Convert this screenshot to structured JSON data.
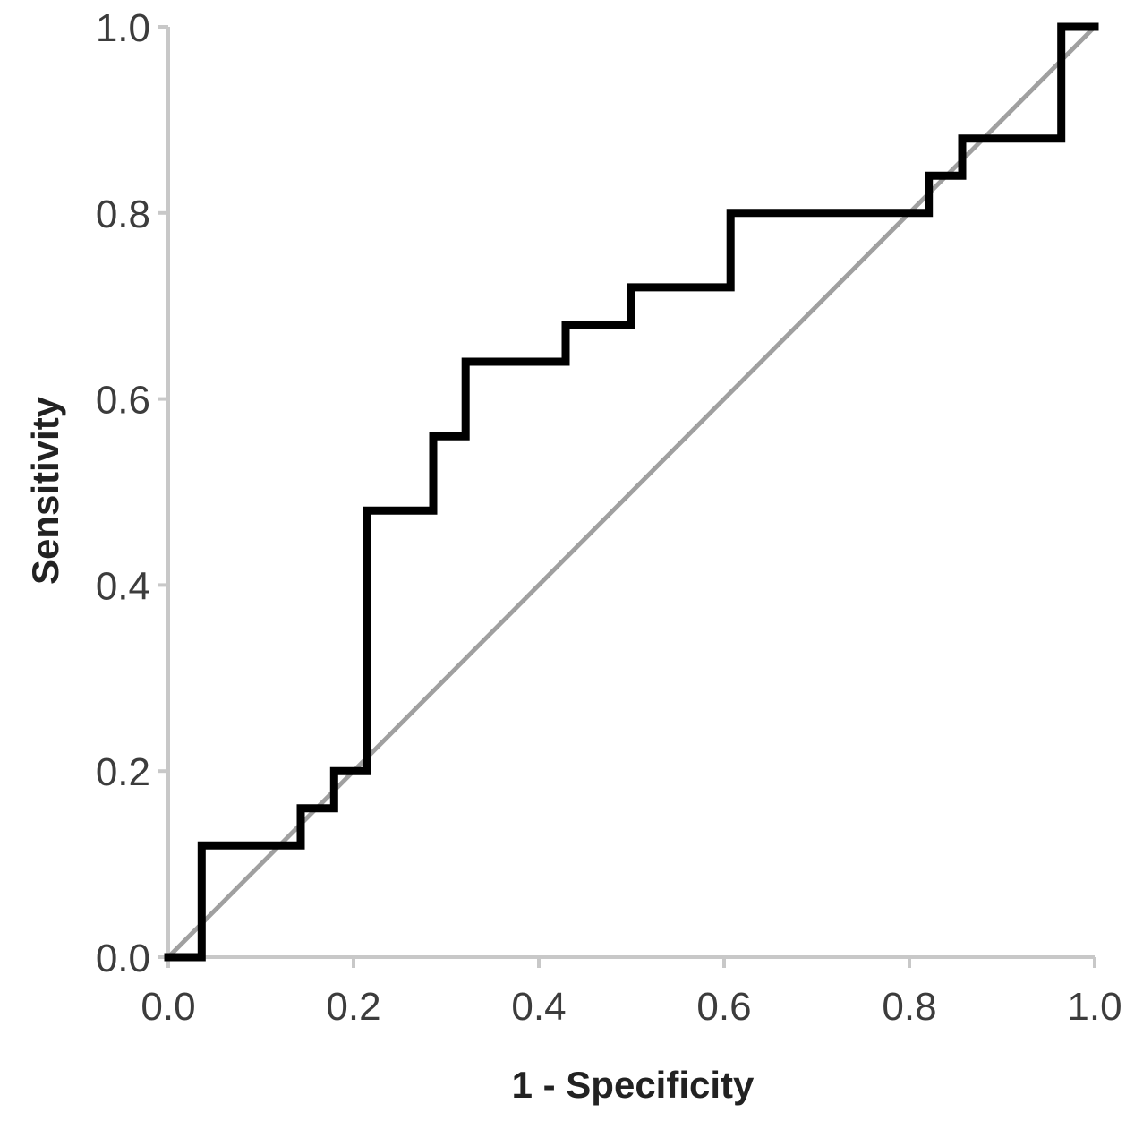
{
  "chart_data": {
    "type": "line",
    "title": "",
    "xlabel": "1 - Specificity",
    "ylabel": "Sensitivity",
    "xlim": [
      0,
      1
    ],
    "ylim": [
      0,
      1
    ],
    "x_ticks": [
      "0.0",
      "0.2",
      "0.4",
      "0.6",
      "0.8",
      "1.0"
    ],
    "y_ticks": [
      "0.0",
      "0.2",
      "0.4",
      "0.6",
      "0.8",
      "1.0"
    ],
    "grid": false,
    "series": [
      {
        "style": "step",
        "color": "#000000",
        "points": [
          [
            0.0,
            0.0
          ],
          [
            0.036,
            0.0
          ],
          [
            0.036,
            0.12
          ],
          [
            0.143,
            0.12
          ],
          [
            0.143,
            0.16
          ],
          [
            0.179,
            0.16
          ],
          [
            0.179,
            0.2
          ],
          [
            0.214,
            0.2
          ],
          [
            0.214,
            0.48
          ],
          [
            0.286,
            0.48
          ],
          [
            0.286,
            0.56
          ],
          [
            0.321,
            0.56
          ],
          [
            0.321,
            0.64
          ],
          [
            0.429,
            0.64
          ],
          [
            0.429,
            0.68
          ],
          [
            0.5,
            0.68
          ],
          [
            0.5,
            0.72
          ],
          [
            0.607,
            0.72
          ],
          [
            0.607,
            0.8
          ],
          [
            0.821,
            0.8
          ],
          [
            0.821,
            0.84
          ],
          [
            0.857,
            0.84
          ],
          [
            0.857,
            0.88
          ],
          [
            0.964,
            0.88
          ],
          [
            0.964,
            1.0
          ],
          [
            1.0,
            1.0
          ]
        ]
      },
      {
        "style": "reference",
        "color": "#a0a0a0",
        "points": [
          [
            0,
            0
          ],
          [
            1,
            1
          ]
        ]
      }
    ]
  }
}
